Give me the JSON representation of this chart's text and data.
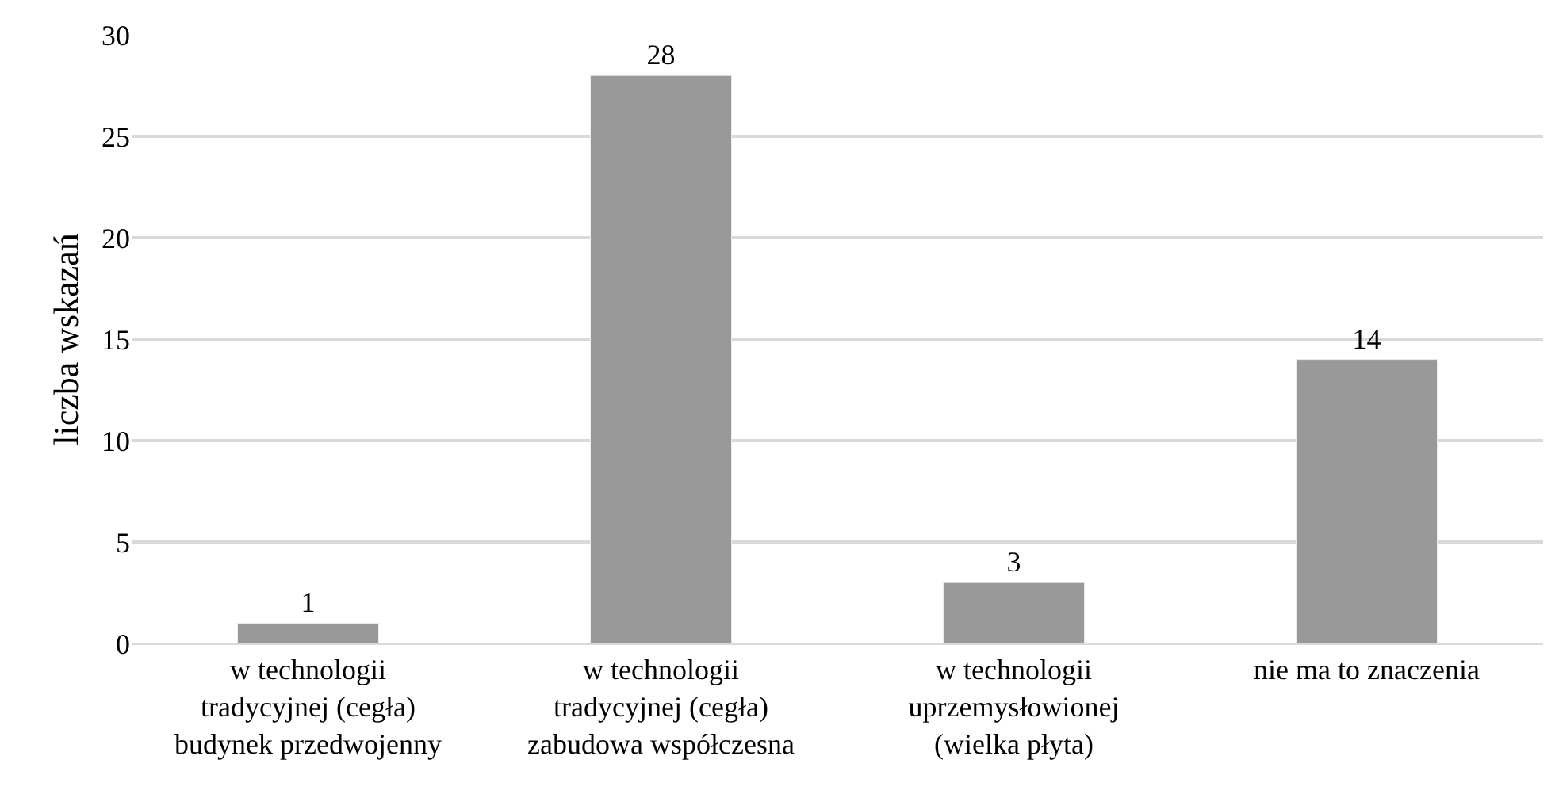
{
  "chart_data": {
    "type": "bar",
    "ylabel": "liczba wskazań",
    "categories": [
      "w technologii\ntradycyjnej (cegła)\nbudynek przedwojenny",
      "w technologii\ntradycyjnej (cegła)\nzabudowa współczesna",
      "w technologii\nuprzemysłowionej\n(wielka płyta)",
      "nie ma to znaczenia"
    ],
    "values": [
      1,
      28,
      3,
      14
    ],
    "color": "#999999",
    "ylim": [
      0,
      30
    ],
    "yticks": [
      0,
      5,
      10,
      15,
      20,
      25,
      30
    ],
    "grid": "y",
    "data_labels": true
  }
}
